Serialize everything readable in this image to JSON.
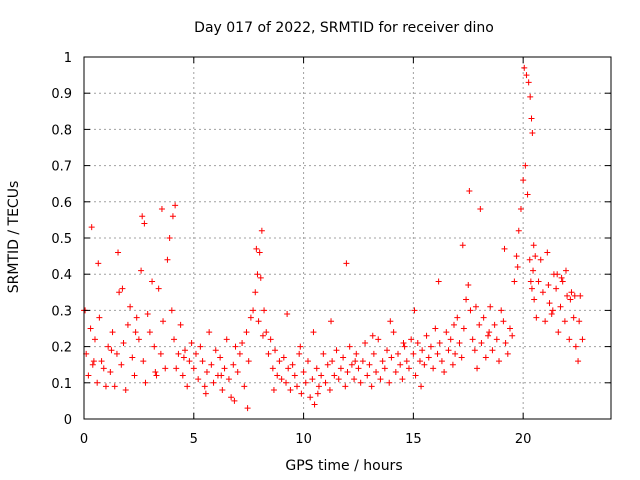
{
  "chart_data": {
    "type": "scatter",
    "title": "Day 017 of 2022, SRMTID for receiver dino",
    "xlabel": "GPS time / hours",
    "ylabel": "SRMTID / TECUs",
    "xlim": [
      0,
      24
    ],
    "ylim": [
      0,
      1
    ],
    "xticks": [
      0,
      5,
      10,
      15,
      20
    ],
    "yticks": [
      0,
      0.1,
      0.2,
      0.3,
      0.4,
      0.5,
      0.6,
      0.7,
      0.8,
      0.9,
      1
    ],
    "xtick_labels": [
      "0",
      "5",
      "10",
      "15",
      "20"
    ],
    "ytick_labels": [
      "0",
      "0.1",
      "0.2",
      "0.3",
      "0.4",
      "0.5",
      "0.6",
      "0.7",
      "0.8",
      "0.9",
      "1"
    ],
    "grid": true,
    "marker": "+",
    "color": "#ff0000",
    "series": [
      {
        "name": "SRMTID",
        "x": [
          0.0,
          0.1,
          0.2,
          0.3,
          0.4,
          0.5,
          0.6,
          0.7,
          0.8,
          0.9,
          1.0,
          1.1,
          1.2,
          1.3,
          1.4,
          1.5,
          1.6,
          1.7,
          1.8,
          1.9,
          2.0,
          2.1,
          2.2,
          2.3,
          2.4,
          2.5,
          2.6,
          2.7,
          2.8,
          2.9,
          3.0,
          3.1,
          3.2,
          3.3,
          3.4,
          3.5,
          3.6,
          3.7,
          3.8,
          3.9,
          4.0,
          4.1,
          4.2,
          4.3,
          4.4,
          4.5,
          4.6,
          4.7,
          4.8,
          4.9,
          5.0,
          5.1,
          5.2,
          5.3,
          5.4,
          5.5,
          5.6,
          5.7,
          5.8,
          5.9,
          6.0,
          6.1,
          6.2,
          6.3,
          6.4,
          6.5,
          6.6,
          6.7,
          6.8,
          6.9,
          7.0,
          7.1,
          7.2,
          7.3,
          7.4,
          7.5,
          7.6,
          7.7,
          7.8,
          7.9,
          8.0,
          8.1,
          8.2,
          8.3,
          8.4,
          8.5,
          8.6,
          8.7,
          8.8,
          8.9,
          9.0,
          9.1,
          9.2,
          9.3,
          9.4,
          9.5,
          9.6,
          9.7,
          9.8,
          9.9,
          10.0,
          10.1,
          10.2,
          10.3,
          10.4,
          10.5,
          10.6,
          10.7,
          10.8,
          10.9,
          11.0,
          11.1,
          11.2,
          11.3,
          11.4,
          11.5,
          11.6,
          11.7,
          11.8,
          11.9,
          12.0,
          12.1,
          12.2,
          12.3,
          12.4,
          12.5,
          12.6,
          12.7,
          12.8,
          12.9,
          13.0,
          13.1,
          13.2,
          13.3,
          13.4,
          13.5,
          13.6,
          13.7,
          13.8,
          13.9,
          14.0,
          14.1,
          14.2,
          14.3,
          14.4,
          14.5,
          14.6,
          14.7,
          14.8,
          14.9,
          15.0,
          15.1,
          15.2,
          15.3,
          15.4,
          15.5,
          15.6,
          15.7,
          15.8,
          15.9,
          16.0,
          16.1,
          16.2,
          16.3,
          16.4,
          16.5,
          16.6,
          16.7,
          16.8,
          16.9,
          17.0,
          17.1,
          17.2,
          17.3,
          17.4,
          17.5,
          17.6,
          17.7,
          17.8,
          17.9,
          18.0,
          18.1,
          18.2,
          18.3,
          18.4,
          18.5,
          18.6,
          18.7,
          18.8,
          18.9,
          19.0,
          19.1,
          19.2,
          19.3,
          19.4,
          19.5,
          19.6,
          19.7,
          19.8,
          19.9,
          20.0,
          20.1,
          20.2,
          20.3,
          20.35,
          20.4,
          20.45,
          20.5,
          20.6,
          20.7,
          20.8,
          20.9,
          21.0,
          21.1,
          21.2,
          21.3,
          21.4,
          21.5,
          21.6,
          21.7,
          21.8,
          21.9,
          22.0,
          22.1,
          22.2,
          22.3,
          22.4,
          22.5,
          22.6,
          22.7,
          0.05,
          0.35,
          0.65,
          1.55,
          1.75,
          2.65,
          2.75,
          3.55,
          4.05,
          4.15,
          7.85,
          7.95,
          8.05,
          8.15,
          10.45,
          11.95,
          15.05,
          17.25,
          17.55,
          18.05,
          20.05,
          20.15,
          20.25,
          20.32,
          20.38,
          20.42,
          20.48,
          20.55,
          21.15,
          21.55,
          21.95,
          22.35,
          22.55,
          0.45,
          1.25,
          2.35,
          3.25,
          4.55,
          5.55,
          6.25,
          6.85,
          7.45,
          8.65,
          9.25,
          9.85,
          10.65,
          11.25,
          12.35,
          13.15,
          13.95,
          14.55,
          15.35,
          16.15,
          16.85,
          17.85,
          18.45,
          19.15,
          19.75,
          21.35,
          21.75,
          22.15
        ],
        "y": [
          0.3,
          0.18,
          0.12,
          0.25,
          0.15,
          0.22,
          0.1,
          0.28,
          0.16,
          0.14,
          0.09,
          0.2,
          0.13,
          0.24,
          0.09,
          0.18,
          0.35,
          0.15,
          0.21,
          0.08,
          0.26,
          0.31,
          0.17,
          0.12,
          0.28,
          0.22,
          0.41,
          0.16,
          0.1,
          0.29,
          0.24,
          0.38,
          0.2,
          0.12,
          0.36,
          0.18,
          0.27,
          0.14,
          0.44,
          0.5,
          0.3,
          0.22,
          0.14,
          0.18,
          0.26,
          0.12,
          0.19,
          0.09,
          0.16,
          0.21,
          0.14,
          0.18,
          0.11,
          0.2,
          0.16,
          0.09,
          0.13,
          0.24,
          0.15,
          0.1,
          0.19,
          0.12,
          0.17,
          0.08,
          0.14,
          0.22,
          0.11,
          0.06,
          0.15,
          0.2,
          0.13,
          0.18,
          0.21,
          0.09,
          0.24,
          0.16,
          0.28,
          0.3,
          0.35,
          0.4,
          0.46,
          0.52,
          0.3,
          0.24,
          0.18,
          0.22,
          0.14,
          0.19,
          0.12,
          0.16,
          0.11,
          0.17,
          0.1,
          0.14,
          0.08,
          0.15,
          0.12,
          0.09,
          0.18,
          0.07,
          0.13,
          0.1,
          0.16,
          0.06,
          0.11,
          0.04,
          0.14,
          0.09,
          0.12,
          0.18,
          0.1,
          0.15,
          0.08,
          0.16,
          0.12,
          0.19,
          0.11,
          0.14,
          0.17,
          0.09,
          0.13,
          0.2,
          0.15,
          0.11,
          0.18,
          0.14,
          0.1,
          0.16,
          0.21,
          0.12,
          0.15,
          0.09,
          0.18,
          0.13,
          0.22,
          0.11,
          0.16,
          0.14,
          0.19,
          0.1,
          0.17,
          0.24,
          0.13,
          0.18,
          0.15,
          0.11,
          0.2,
          0.16,
          0.14,
          0.22,
          0.18,
          0.12,
          0.21,
          0.16,
          0.19,
          0.15,
          0.23,
          0.17,
          0.2,
          0.14,
          0.25,
          0.18,
          0.21,
          0.16,
          0.13,
          0.24,
          0.19,
          0.22,
          0.15,
          0.18,
          0.28,
          0.21,
          0.17,
          0.25,
          0.33,
          0.37,
          0.3,
          0.22,
          0.19,
          0.14,
          0.26,
          0.21,
          0.28,
          0.17,
          0.23,
          0.31,
          0.19,
          0.26,
          0.22,
          0.16,
          0.3,
          0.27,
          0.21,
          0.18,
          0.25,
          0.23,
          0.38,
          0.45,
          0.52,
          0.58,
          0.66,
          0.7,
          0.62,
          0.44,
          0.38,
          0.36,
          0.41,
          0.33,
          0.28,
          0.38,
          0.44,
          0.35,
          0.27,
          0.46,
          0.32,
          0.29,
          0.4,
          0.36,
          0.24,
          0.31,
          0.38,
          0.27,
          0.34,
          0.22,
          0.35,
          0.28,
          0.2,
          0.16,
          0.34,
          0.22,
          0.3,
          0.53,
          0.43,
          0.46,
          0.36,
          0.56,
          0.54,
          0.58,
          0.56,
          0.59,
          0.47,
          0.27,
          0.39,
          0.23,
          0.24,
          0.43,
          0.3,
          0.48,
          0.63,
          0.58,
          0.97,
          0.95,
          0.93,
          0.89,
          0.83,
          0.79,
          0.48,
          0.45,
          0.37,
          0.4,
          0.41,
          0.34,
          0.27,
          0.16,
          0.19,
          0.24,
          0.13,
          0.17,
          0.07,
          0.12,
          0.05,
          0.03,
          0.08,
          0.29,
          0.2,
          0.07,
          0.27,
          0.16,
          0.23,
          0.27,
          0.21,
          0.09,
          0.38,
          0.26,
          0.31,
          0.24,
          0.47,
          0.42,
          0.3,
          0.39,
          0.33
        ]
      }
    ]
  }
}
